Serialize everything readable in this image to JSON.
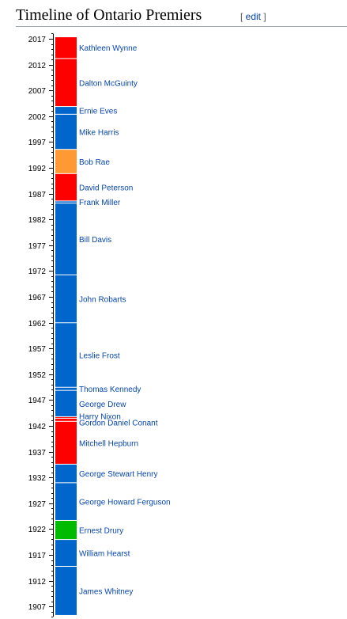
{
  "heading": {
    "title": "Timeline of Ontario Premiers",
    "edit_open": "[ ",
    "edit_label": "edit",
    "edit_close": " ]"
  },
  "chart_data": {
    "type": "timeline",
    "axis": {
      "range": [
        1905,
        2018
      ],
      "major_ticks": [
        1907,
        1912,
        1917,
        1922,
        1927,
        1932,
        1937,
        1942,
        1947,
        1952,
        1957,
        1962,
        1967,
        1972,
        1977,
        1982,
        1987,
        1992,
        1997,
        2002,
        2007,
        2012,
        2017
      ],
      "minor_tick_step": 1
    },
    "colors": {
      "conservative": "#0066cc",
      "liberal": "#ff0000",
      "ndp": "#ff9933",
      "ufo": "#00bb00"
    },
    "terms": [
      {
        "name": "James Whitney",
        "start": 1905.2,
        "end": 1914.7,
        "party": "conservative"
      },
      {
        "name": "William Hearst",
        "start": 1914.7,
        "end": 1919.9,
        "party": "conservative"
      },
      {
        "name": "Ernest Drury",
        "start": 1919.9,
        "end": 1923.6,
        "party": "ufo"
      },
      {
        "name": "George Howard Ferguson",
        "start": 1923.6,
        "end": 1930.9,
        "party": "conservative"
      },
      {
        "name": "George Stewart Henry",
        "start": 1930.9,
        "end": 1934.5,
        "party": "conservative"
      },
      {
        "name": "Mitchell Hepburn",
        "start": 1934.5,
        "end": 1942.8,
        "party": "liberal"
      },
      {
        "name": "Gordon Daniel Conant",
        "start": 1942.8,
        "end": 1943.4,
        "party": "liberal"
      },
      {
        "name": "Harry Nixon",
        "start": 1943.4,
        "end": 1943.7,
        "party": "liberal"
      },
      {
        "name": "George Drew",
        "start": 1943.7,
        "end": 1948.8,
        "party": "conservative"
      },
      {
        "name": "Thomas Kennedy",
        "start": 1948.8,
        "end": 1949.4,
        "party": "conservative"
      },
      {
        "name": "Leslie Frost",
        "start": 1949.4,
        "end": 1961.9,
        "party": "conservative"
      },
      {
        "name": "John Robarts",
        "start": 1961.9,
        "end": 1971.2,
        "party": "conservative"
      },
      {
        "name": "Bill Davis",
        "start": 1971.2,
        "end": 1985.1,
        "party": "conservative"
      },
      {
        "name": "Frank Miller",
        "start": 1985.1,
        "end": 1985.5,
        "party": "conservative"
      },
      {
        "name": "David Peterson",
        "start": 1985.5,
        "end": 1990.8,
        "party": "liberal"
      },
      {
        "name": "Bob Rae",
        "start": 1990.8,
        "end": 1995.5,
        "party": "ndp"
      },
      {
        "name": "Mike Harris",
        "start": 1995.5,
        "end": 2002.3,
        "party": "conservative"
      },
      {
        "name": "Ernie Eves",
        "start": 2002.3,
        "end": 2003.8,
        "party": "conservative"
      },
      {
        "name": "Dalton McGuinty",
        "start": 2003.8,
        "end": 2013.1,
        "party": "liberal"
      },
      {
        "name": "Kathleen Wynne",
        "start": 2013.1,
        "end": 2017.3,
        "party": "liberal"
      }
    ]
  }
}
